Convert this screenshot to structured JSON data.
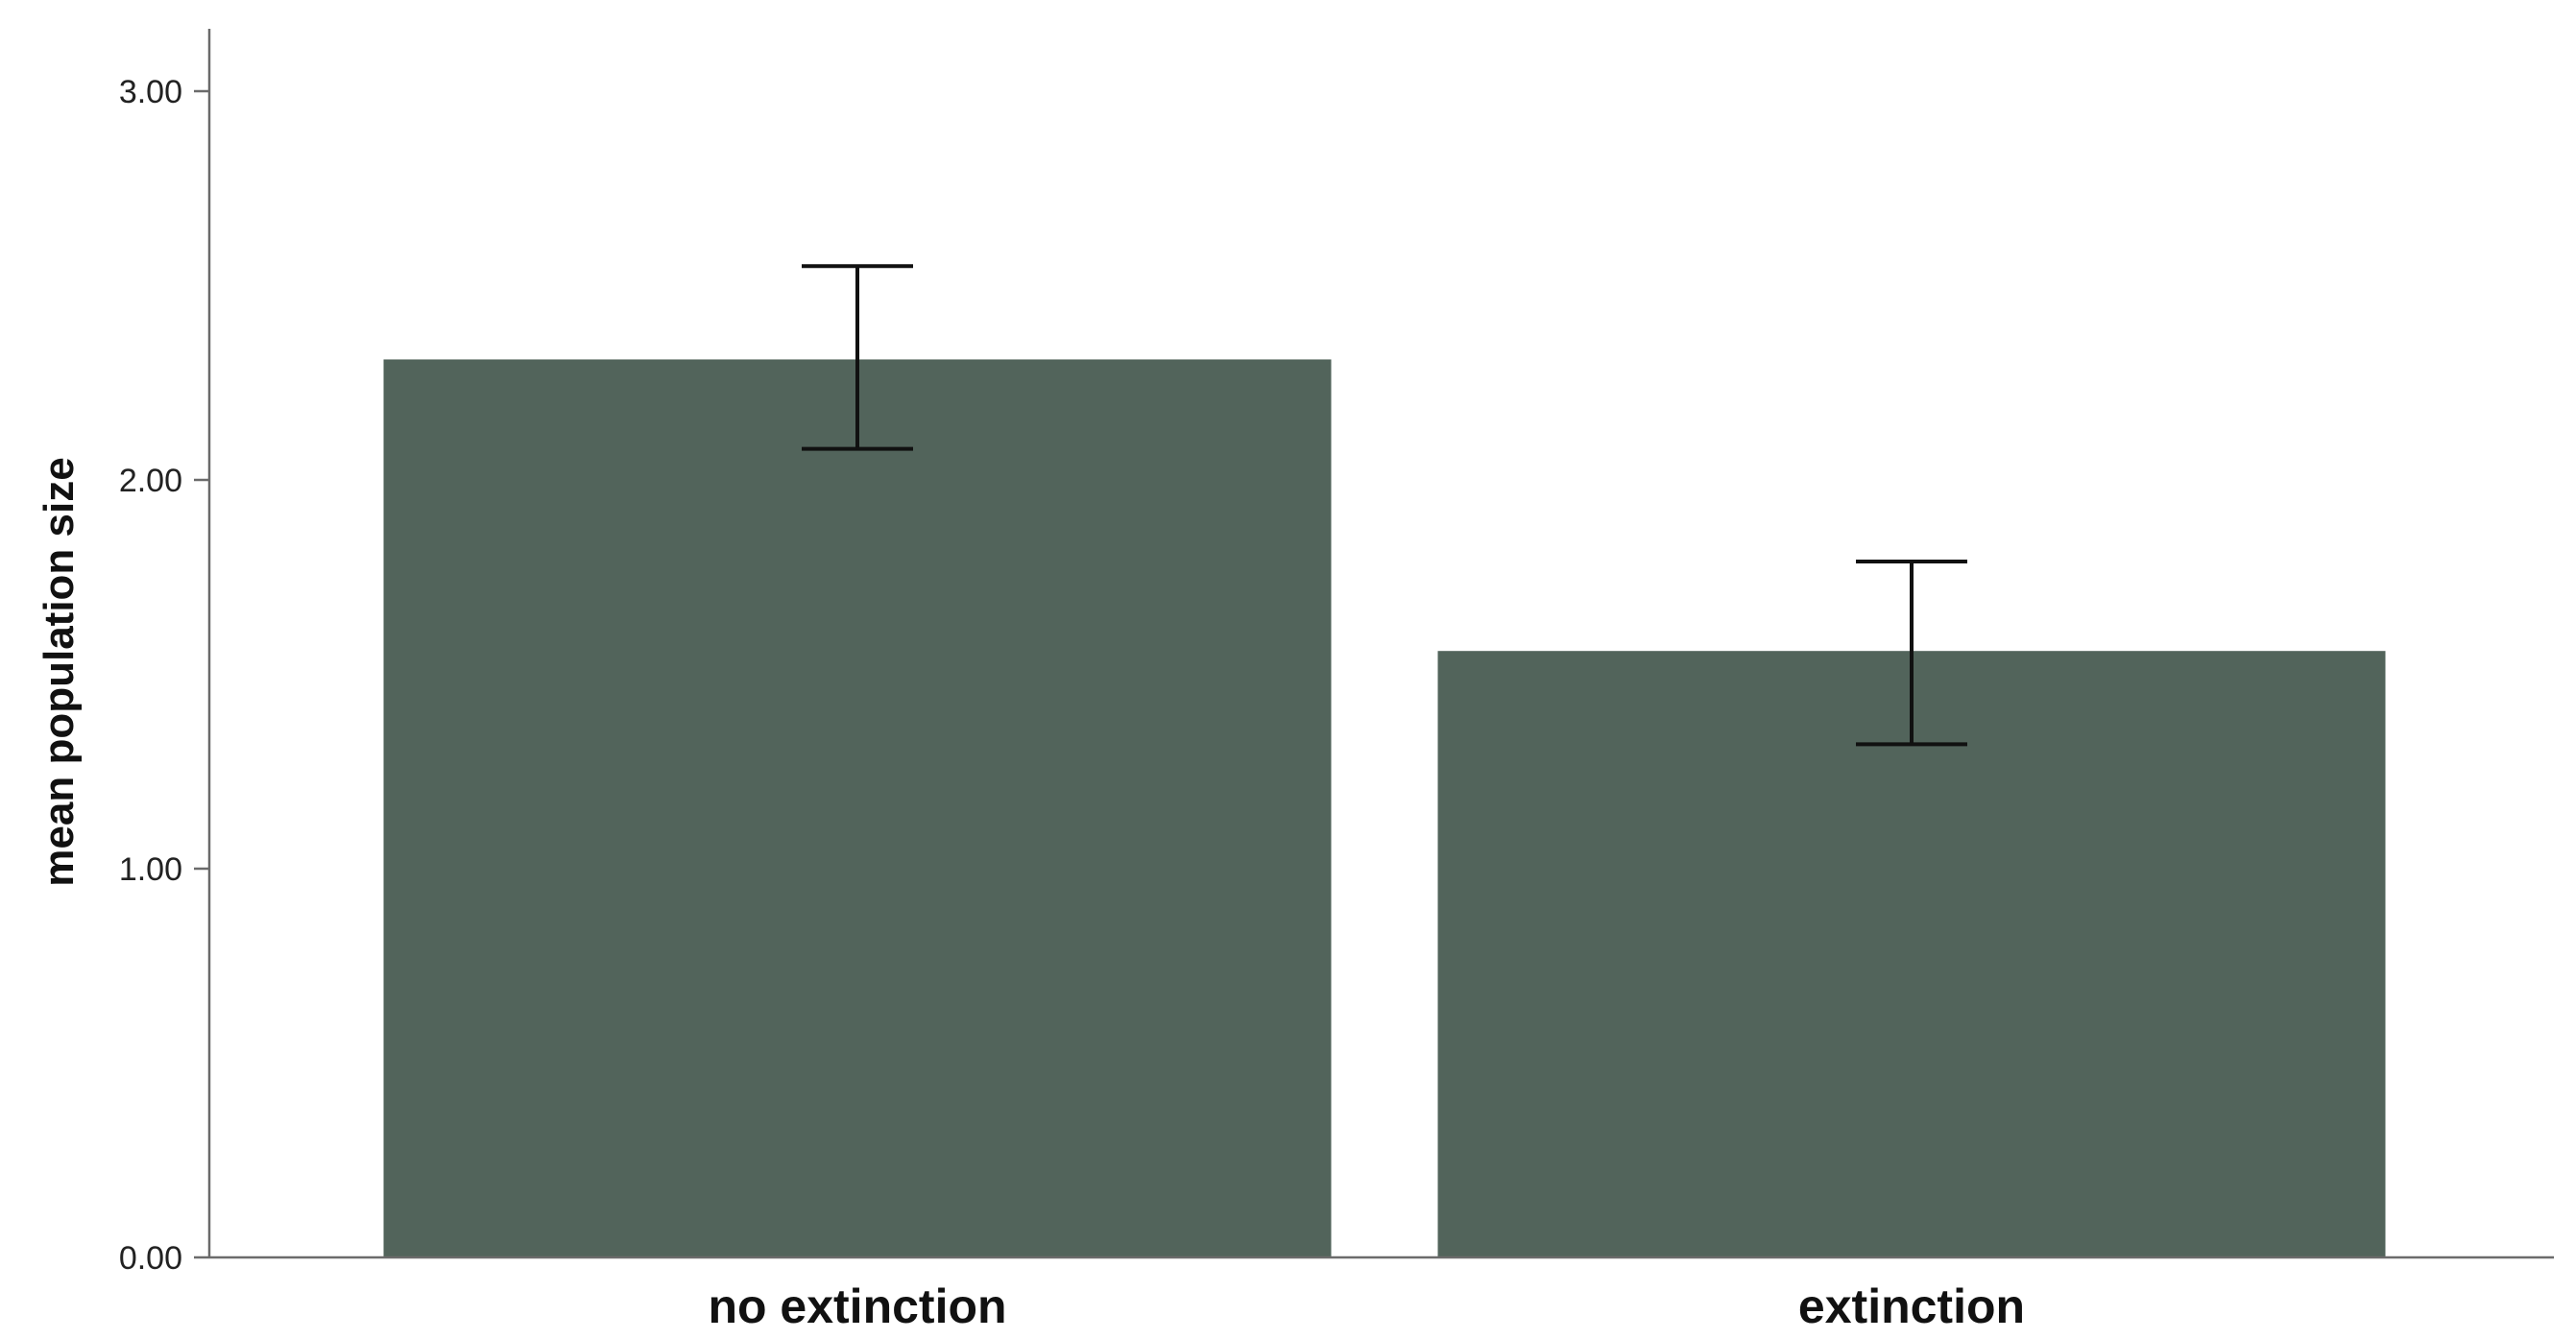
{
  "chart_data": {
    "type": "bar",
    "title": "",
    "xlabel": "",
    "ylabel": "mean population size",
    "categories": [
      "no extinction",
      "extinction"
    ],
    "values": [
      2.31,
      1.56
    ],
    "error_bars": [
      {
        "low": 2.08,
        "high": 2.55
      },
      {
        "low": 1.32,
        "high": 1.79
      }
    ],
    "ylim": [
      0,
      3.15
    ],
    "yticks": [
      0,
      1,
      2,
      3
    ],
    "ytick_labels": [
      "0.00",
      "1.00",
      "2.00",
      "3.00"
    ],
    "grid": false,
    "legend": "none",
    "bar_color": "#52645b",
    "error_bar_color": "#111111"
  }
}
